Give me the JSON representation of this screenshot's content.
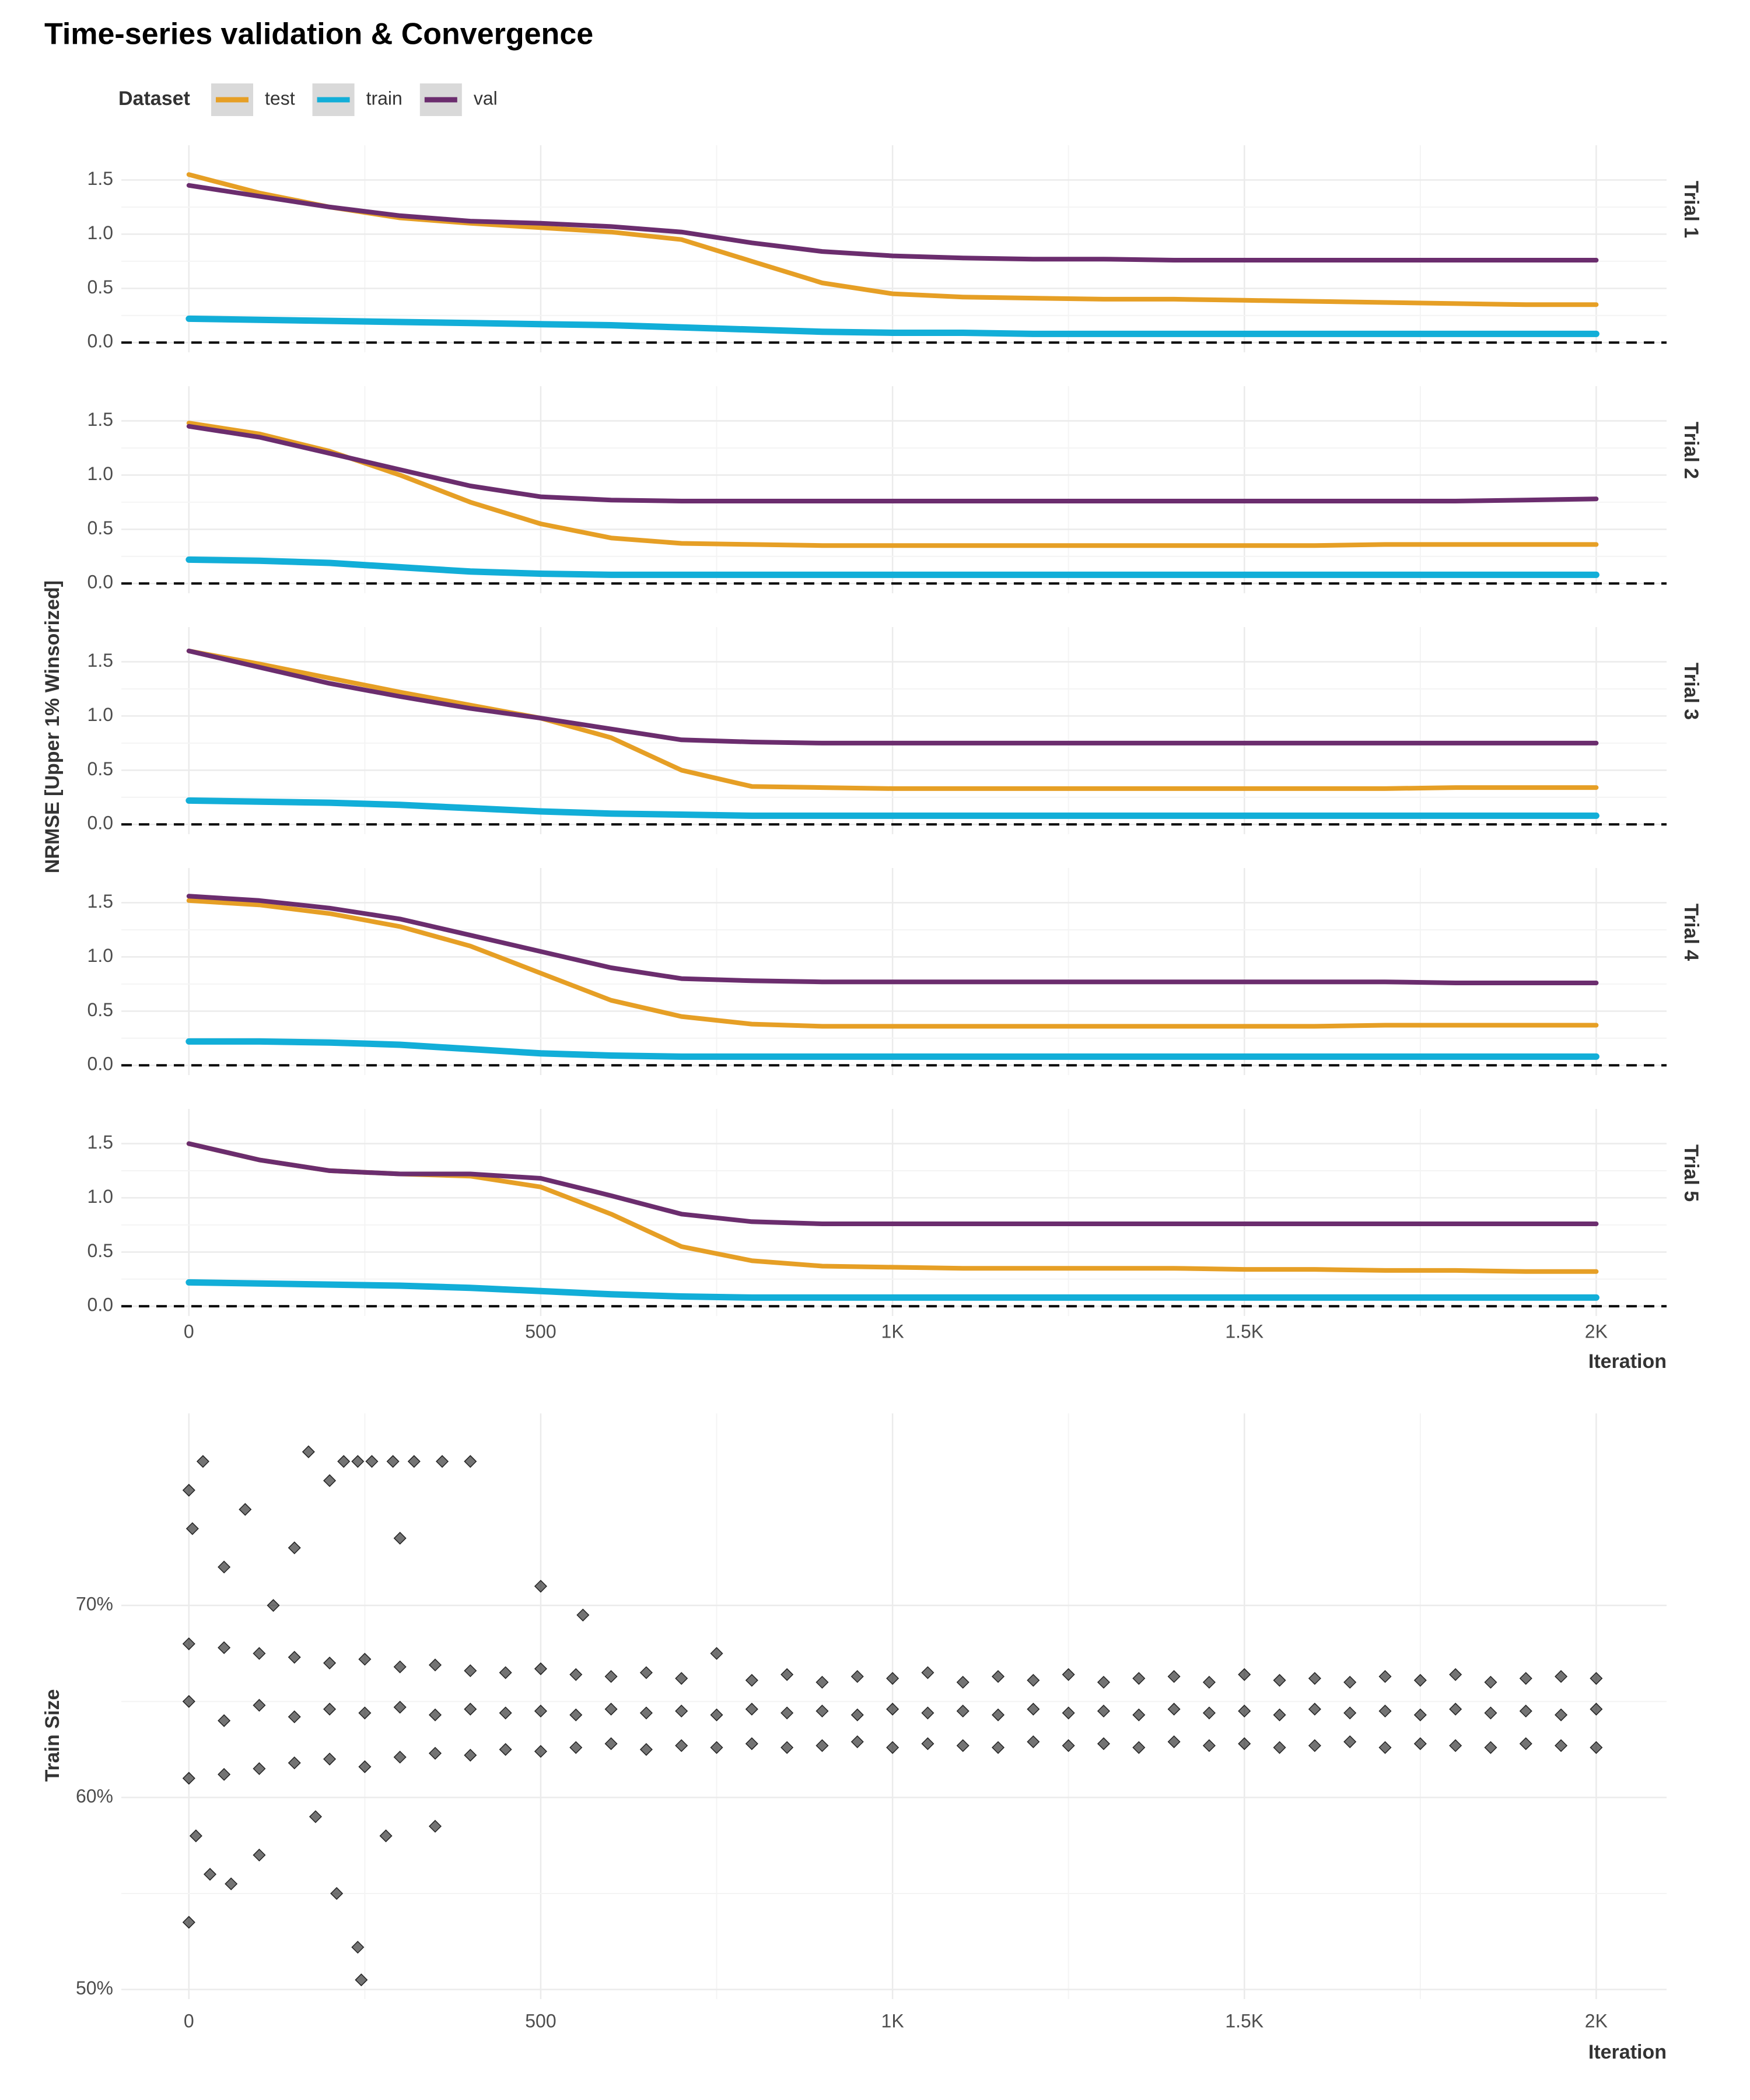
{
  "title": "Time-series validation & Convergence",
  "legend_title": "Dataset",
  "chart_data": [
    {
      "type": "line",
      "y_label": "NRMSE [Upper 1% Winsorized]",
      "x_label": "Iteration",
      "x": [
        0,
        100,
        200,
        300,
        400,
        500,
        600,
        700,
        800,
        900,
        1000,
        1100,
        1200,
        1300,
        1400,
        1500,
        1600,
        1700,
        1800,
        1900,
        2000
      ],
      "xlim": [
        -96,
        2100
      ],
      "xticks": [
        0,
        500,
        {
          "value": 1000,
          "label": "1K"
        },
        {
          "value": 1500,
          "label": "1.5K"
        },
        {
          "value": 2000,
          "label": "2K"
        }
      ],
      "ylim": [
        -0.09,
        1.82
      ],
      "yticks": [
        {
          "value": 0,
          "label": "0.0"
        },
        0.5,
        {
          "value": 1,
          "label": "1.0"
        },
        1.5
      ],
      "hline": 0,
      "grid": true,
      "panels": [
        {
          "label": "Trial 1",
          "series": [
            {
              "name": "test",
              "color": "#E69F25",
              "values": [
                1.55,
                1.38,
                1.25,
                1.15,
                1.1,
                1.06,
                1.02,
                0.95,
                0.75,
                0.55,
                0.45,
                0.42,
                0.41,
                0.4,
                0.4,
                0.39,
                0.38,
                0.37,
                0.36,
                0.35,
                0.35
              ]
            },
            {
              "name": "train",
              "color": "#12AED8",
              "values": [
                0.22,
                0.21,
                0.2,
                0.19,
                0.18,
                0.17,
                0.16,
                0.14,
                0.12,
                0.1,
                0.09,
                0.09,
                0.08,
                0.08,
                0.08,
                0.08,
                0.08,
                0.08,
                0.08,
                0.08,
                0.08
              ]
            },
            {
              "name": "val",
              "color": "#6B2D6E",
              "values": [
                1.45,
                1.35,
                1.25,
                1.17,
                1.12,
                1.1,
                1.07,
                1.02,
                0.92,
                0.84,
                0.8,
                0.78,
                0.77,
                0.77,
                0.76,
                0.76,
                0.76,
                0.76,
                0.76,
                0.76,
                0.76
              ]
            }
          ]
        },
        {
          "label": "Trial 2",
          "series": [
            {
              "name": "test",
              "color": "#E69F25",
              "values": [
                1.48,
                1.38,
                1.22,
                1.0,
                0.75,
                0.55,
                0.42,
                0.37,
                0.36,
                0.35,
                0.35,
                0.35,
                0.35,
                0.35,
                0.35,
                0.35,
                0.35,
                0.36,
                0.36,
                0.36,
                0.36
              ]
            },
            {
              "name": "train",
              "color": "#12AED8",
              "values": [
                0.22,
                0.21,
                0.19,
                0.15,
                0.11,
                0.09,
                0.08,
                0.08,
                0.08,
                0.08,
                0.08,
                0.08,
                0.08,
                0.08,
                0.08,
                0.08,
                0.08,
                0.08,
                0.08,
                0.08,
                0.08
              ]
            },
            {
              "name": "val",
              "color": "#6B2D6E",
              "values": [
                1.45,
                1.35,
                1.2,
                1.05,
                0.9,
                0.8,
                0.77,
                0.76,
                0.76,
                0.76,
                0.76,
                0.76,
                0.76,
                0.76,
                0.76,
                0.76,
                0.76,
                0.76,
                0.76,
                0.77,
                0.78
              ]
            }
          ]
        },
        {
          "label": "Trial 3",
          "series": [
            {
              "name": "test",
              "color": "#E69F25",
              "values": [
                1.6,
                1.48,
                1.35,
                1.22,
                1.1,
                0.98,
                0.8,
                0.5,
                0.35,
                0.34,
                0.33,
                0.33,
                0.33,
                0.33,
                0.33,
                0.33,
                0.33,
                0.33,
                0.34,
                0.34,
                0.34
              ]
            },
            {
              "name": "train",
              "color": "#12AED8",
              "values": [
                0.22,
                0.21,
                0.2,
                0.18,
                0.15,
                0.12,
                0.1,
                0.09,
                0.08,
                0.08,
                0.08,
                0.08,
                0.08,
                0.08,
                0.08,
                0.08,
                0.08,
                0.08,
                0.08,
                0.08,
                0.08
              ]
            },
            {
              "name": "val",
              "color": "#6B2D6E",
              "values": [
                1.6,
                1.45,
                1.3,
                1.18,
                1.07,
                0.98,
                0.88,
                0.78,
                0.76,
                0.75,
                0.75,
                0.75,
                0.75,
                0.75,
                0.75,
                0.75,
                0.75,
                0.75,
                0.75,
                0.75,
                0.75
              ]
            }
          ]
        },
        {
          "label": "Trial 4",
          "series": [
            {
              "name": "test",
              "color": "#E69F25",
              "values": [
                1.52,
                1.48,
                1.4,
                1.28,
                1.1,
                0.85,
                0.6,
                0.45,
                0.38,
                0.36,
                0.36,
                0.36,
                0.36,
                0.36,
                0.36,
                0.36,
                0.36,
                0.37,
                0.37,
                0.37,
                0.37
              ]
            },
            {
              "name": "train",
              "color": "#12AED8",
              "values": [
                0.22,
                0.22,
                0.21,
                0.19,
                0.15,
                0.11,
                0.09,
                0.08,
                0.08,
                0.08,
                0.08,
                0.08,
                0.08,
                0.08,
                0.08,
                0.08,
                0.08,
                0.08,
                0.08,
                0.08,
                0.08
              ]
            },
            {
              "name": "val",
              "color": "#6B2D6E",
              "values": [
                1.56,
                1.52,
                1.45,
                1.35,
                1.2,
                1.05,
                0.9,
                0.8,
                0.78,
                0.77,
                0.77,
                0.77,
                0.77,
                0.77,
                0.77,
                0.77,
                0.77,
                0.77,
                0.76,
                0.76,
                0.76
              ]
            }
          ]
        },
        {
          "label": "Trial 5",
          "series": [
            {
              "name": "test",
              "color": "#E69F25",
              "values": [
                1.5,
                1.35,
                1.25,
                1.22,
                1.2,
                1.1,
                0.85,
                0.55,
                0.42,
                0.37,
                0.36,
                0.35,
                0.35,
                0.35,
                0.35,
                0.34,
                0.34,
                0.33,
                0.33,
                0.32,
                0.32
              ]
            },
            {
              "name": "train",
              "color": "#12AED8",
              "values": [
                0.22,
                0.21,
                0.2,
                0.19,
                0.17,
                0.14,
                0.11,
                0.09,
                0.08,
                0.08,
                0.08,
                0.08,
                0.08,
                0.08,
                0.08,
                0.08,
                0.08,
                0.08,
                0.08,
                0.08,
                0.08
              ]
            },
            {
              "name": "val",
              "color": "#6B2D6E",
              "values": [
                1.5,
                1.35,
                1.25,
                1.22,
                1.22,
                1.18,
                1.02,
                0.85,
                0.78,
                0.76,
                0.76,
                0.76,
                0.76,
                0.76,
                0.76,
                0.76,
                0.76,
                0.76,
                0.76,
                0.76,
                0.76
              ]
            }
          ]
        }
      ]
    },
    {
      "type": "scatter",
      "y_label": "Train Size",
      "x_label": "Iteration",
      "color": "#000000",
      "xlim": [
        -96,
        2100
      ],
      "xticks": [
        0,
        500,
        {
          "value": 1000,
          "label": "1K"
        },
        {
          "value": 1500,
          "label": "1.5K"
        },
        {
          "value": 2000,
          "label": "2K"
        }
      ],
      "ylim": [
        49.5,
        80
      ],
      "yticks": [
        {
          "value": 50,
          "label": "50%"
        },
        {
          "value": 60,
          "label": "60%"
        },
        {
          "value": 70,
          "label": "70%"
        }
      ],
      "grid": true,
      "x": [
        0,
        50,
        100,
        150,
        200,
        250,
        300,
        350,
        400,
        450,
        500,
        550,
        600,
        650,
        700,
        750,
        800,
        850,
        900,
        950,
        1000,
        1050,
        1100,
        1150,
        1200,
        1250,
        1300,
        1350,
        1400,
        1450,
        1500,
        1550,
        1600,
        1650,
        1700,
        1750,
        1800,
        1850,
        1900,
        1950,
        2000,
        0,
        50,
        100,
        150,
        200,
        250,
        300,
        350,
        400,
        450,
        500,
        550,
        600,
        650,
        700,
        750,
        800,
        850,
        900,
        950,
        1000,
        1050,
        1100,
        1150,
        1200,
        1250,
        1300,
        1350,
        1400,
        1450,
        1500,
        1550,
        1600,
        1650,
        1700,
        1750,
        1800,
        1850,
        1900,
        1950,
        2000,
        0,
        50,
        100,
        150,
        200,
        250,
        300,
        350,
        400,
        450,
        500,
        550,
        600,
        650,
        700,
        750,
        800,
        850,
        900,
        950,
        1000,
        1050,
        1100,
        1150,
        1200,
        1250,
        1300,
        1350,
        1400,
        1450,
        1500,
        1550,
        1600,
        1650,
        1700,
        1750,
        1800,
        1850,
        1900,
        1950,
        2000,
        0,
        0,
        5,
        20,
        50,
        80,
        120,
        170,
        200,
        220,
        240,
        260,
        290,
        320,
        360,
        400,
        210,
        240,
        245,
        100,
        60,
        30,
        10,
        280,
        180,
        350,
        500,
        560,
        300,
        150
      ],
      "y": [
        68,
        67.8,
        67.5,
        67.3,
        67,
        67.2,
        66.8,
        66.9,
        66.6,
        66.5,
        66.7,
        66.4,
        66.3,
        66.5,
        66.2,
        67.5,
        66.1,
        66.4,
        66,
        66.3,
        66.2,
        66.5,
        66,
        66.3,
        66.1,
        66.4,
        66,
        66.2,
        66.3,
        66,
        66.4,
        66.1,
        66.2,
        66,
        66.3,
        66.1,
        66.4,
        66,
        66.2,
        66.3,
        66.2,
        65,
        64,
        64.8,
        64.2,
        64.6,
        64.4,
        64.7,
        64.3,
        64.6,
        64.4,
        64.5,
        64.3,
        64.6,
        64.4,
        64.5,
        64.3,
        64.6,
        64.4,
        64.5,
        64.3,
        64.6,
        64.4,
        64.5,
        64.3,
        64.6,
        64.4,
        64.5,
        64.3,
        64.6,
        64.4,
        64.5,
        64.3,
        64.6,
        64.4,
        64.5,
        64.3,
        64.6,
        64.4,
        64.5,
        64.3,
        64.6,
        61,
        61.2,
        61.5,
        61.8,
        62,
        61.6,
        62.1,
        62.3,
        62.2,
        62.5,
        62.4,
        62.6,
        62.8,
        62.5,
        62.7,
        62.6,
        62.8,
        62.6,
        62.7,
        62.9,
        62.6,
        62.8,
        62.7,
        62.6,
        62.9,
        62.7,
        62.8,
        62.6,
        62.9,
        62.7,
        62.8,
        62.6,
        62.7,
        62.9,
        62.6,
        62.8,
        62.7,
        62.6,
        62.8,
        62.7,
        62.6,
        53.5,
        76,
        74,
        77.5,
        72,
        75,
        70,
        78,
        76.5,
        77.5,
        77.5,
        77.5,
        77.5,
        77.5,
        77.5,
        77.5,
        55,
        52.2,
        50.5,
        57,
        55.5,
        56,
        58,
        58,
        59,
        58.5,
        71,
        69.5,
        73.5,
        73
      ]
    }
  ]
}
